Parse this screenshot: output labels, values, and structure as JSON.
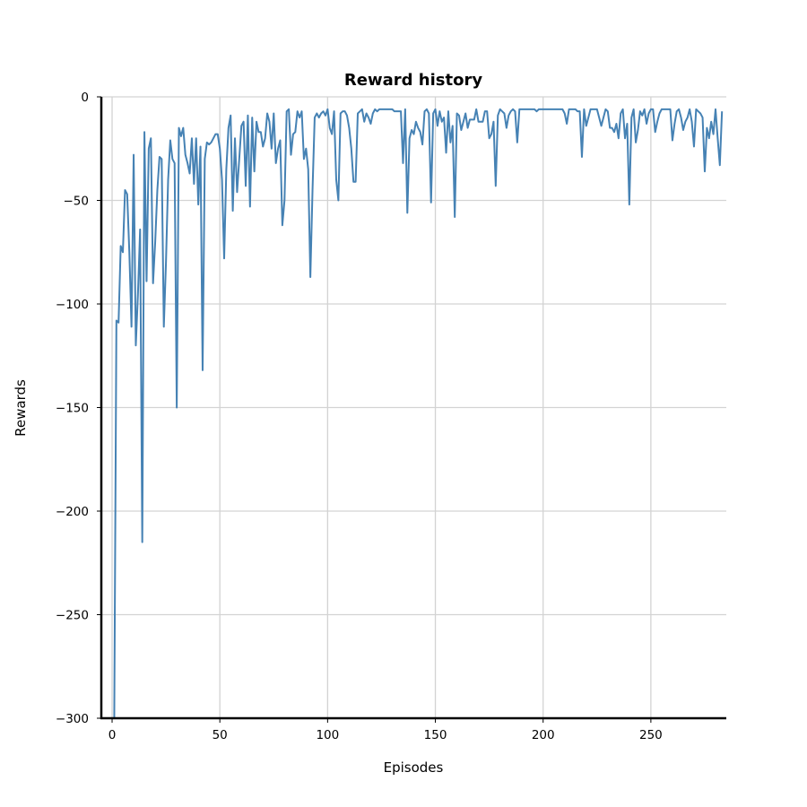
{
  "chart_data": {
    "type": "line",
    "title": "Reward history",
    "xlabel": "Episodes",
    "ylabel": "Rewards",
    "xlim": [
      -5,
      285
    ],
    "ylim": [
      -300,
      0
    ],
    "xticks": [
      0,
      50,
      100,
      150,
      200,
      250
    ],
    "yticks": [
      0,
      -50,
      -100,
      -150,
      -200,
      -250,
      -300
    ],
    "ytick_labels": [
      "0",
      "−50",
      "−100",
      "−150",
      "−200",
      "−250",
      "−300"
    ],
    "grid": true,
    "line_color": "#4682b4",
    "series": [
      {
        "values": [
          -300,
          -300,
          -108,
          -109,
          -72,
          -75,
          -45,
          -47,
          -75,
          -111,
          -28,
          -120,
          -95,
          -64,
          -215,
          -17,
          -89,
          -25,
          -20,
          -90,
          -70,
          -45,
          -29,
          -30,
          -111,
          -80,
          -40,
          -21,
          -30,
          -32,
          -150,
          -15,
          -19,
          -15,
          -28,
          -32,
          -37,
          -20,
          -42,
          -20,
          -52,
          -24,
          -132,
          -30,
          -22,
          -23,
          -22,
          -20,
          -18,
          -18,
          -25,
          -40,
          -78,
          -35,
          -15,
          -9,
          -55,
          -20,
          -46,
          -30,
          -14,
          -12,
          -43,
          -9,
          -53,
          -10,
          -36,
          -12,
          -17,
          -17,
          -24,
          -20,
          -8,
          -12,
          -25,
          -8,
          -32,
          -25,
          -21,
          -62,
          -50,
          -7,
          -6,
          -28,
          -18,
          -17,
          -7,
          -10,
          -7,
          -30,
          -25,
          -35,
          -87,
          -45,
          -10,
          -8,
          -10,
          -8,
          -7,
          -9,
          -6,
          -15,
          -18,
          -7,
          -40,
          -50,
          -8,
          -7,
          -7,
          -9,
          -15,
          -25,
          -41,
          -41,
          -8,
          -7,
          -6,
          -12,
          -8,
          -10,
          -13,
          -8,
          -6,
          -7,
          -6,
          -6,
          -6,
          -6,
          -6,
          -6,
          -6,
          -7,
          -7,
          -7,
          -7,
          -32,
          -6,
          -56,
          -20,
          -16,
          -18,
          -12,
          -15,
          -17,
          -23,
          -7,
          -6,
          -8,
          -51,
          -8,
          -6,
          -14,
          -7,
          -12,
          -10,
          -27,
          -7,
          -22,
          -14,
          -58,
          -8,
          -9,
          -16,
          -12,
          -8,
          -15,
          -11,
          -11,
          -11,
          -6,
          -12,
          -12,
          -12,
          -7,
          -7,
          -20,
          -18,
          -12,
          -43,
          -9,
          -6,
          -7,
          -8,
          -15,
          -9,
          -7,
          -6,
          -7,
          -22,
          -6,
          -6,
          -6,
          -6,
          -6,
          -6,
          -6,
          -6,
          -7,
          -6,
          -6,
          -6,
          -6,
          -6,
          -6,
          -6,
          -6,
          -6,
          -6,
          -6,
          -6,
          -8,
          -13,
          -6,
          -6,
          -6,
          -6,
          -7,
          -7,
          -29,
          -6,
          -14,
          -10,
          -6,
          -6,
          -6,
          -6,
          -10,
          -14,
          -10,
          -6,
          -7,
          -15,
          -15,
          -17,
          -13,
          -20,
          -8,
          -6,
          -20,
          -13,
          -52,
          -10,
          -6,
          -22,
          -16,
          -7,
          -9,
          -6,
          -13,
          -8,
          -6,
          -6,
          -17,
          -12,
          -8,
          -6,
          -6,
          -6,
          -6,
          -6,
          -21,
          -13,
          -7,
          -6,
          -10,
          -16,
          -12,
          -10,
          -6,
          -12,
          -24,
          -6,
          -7,
          -8,
          -10,
          -36,
          -15,
          -20,
          -12,
          -18,
          -6,
          -20,
          -33,
          -7
        ]
      }
    ]
  }
}
